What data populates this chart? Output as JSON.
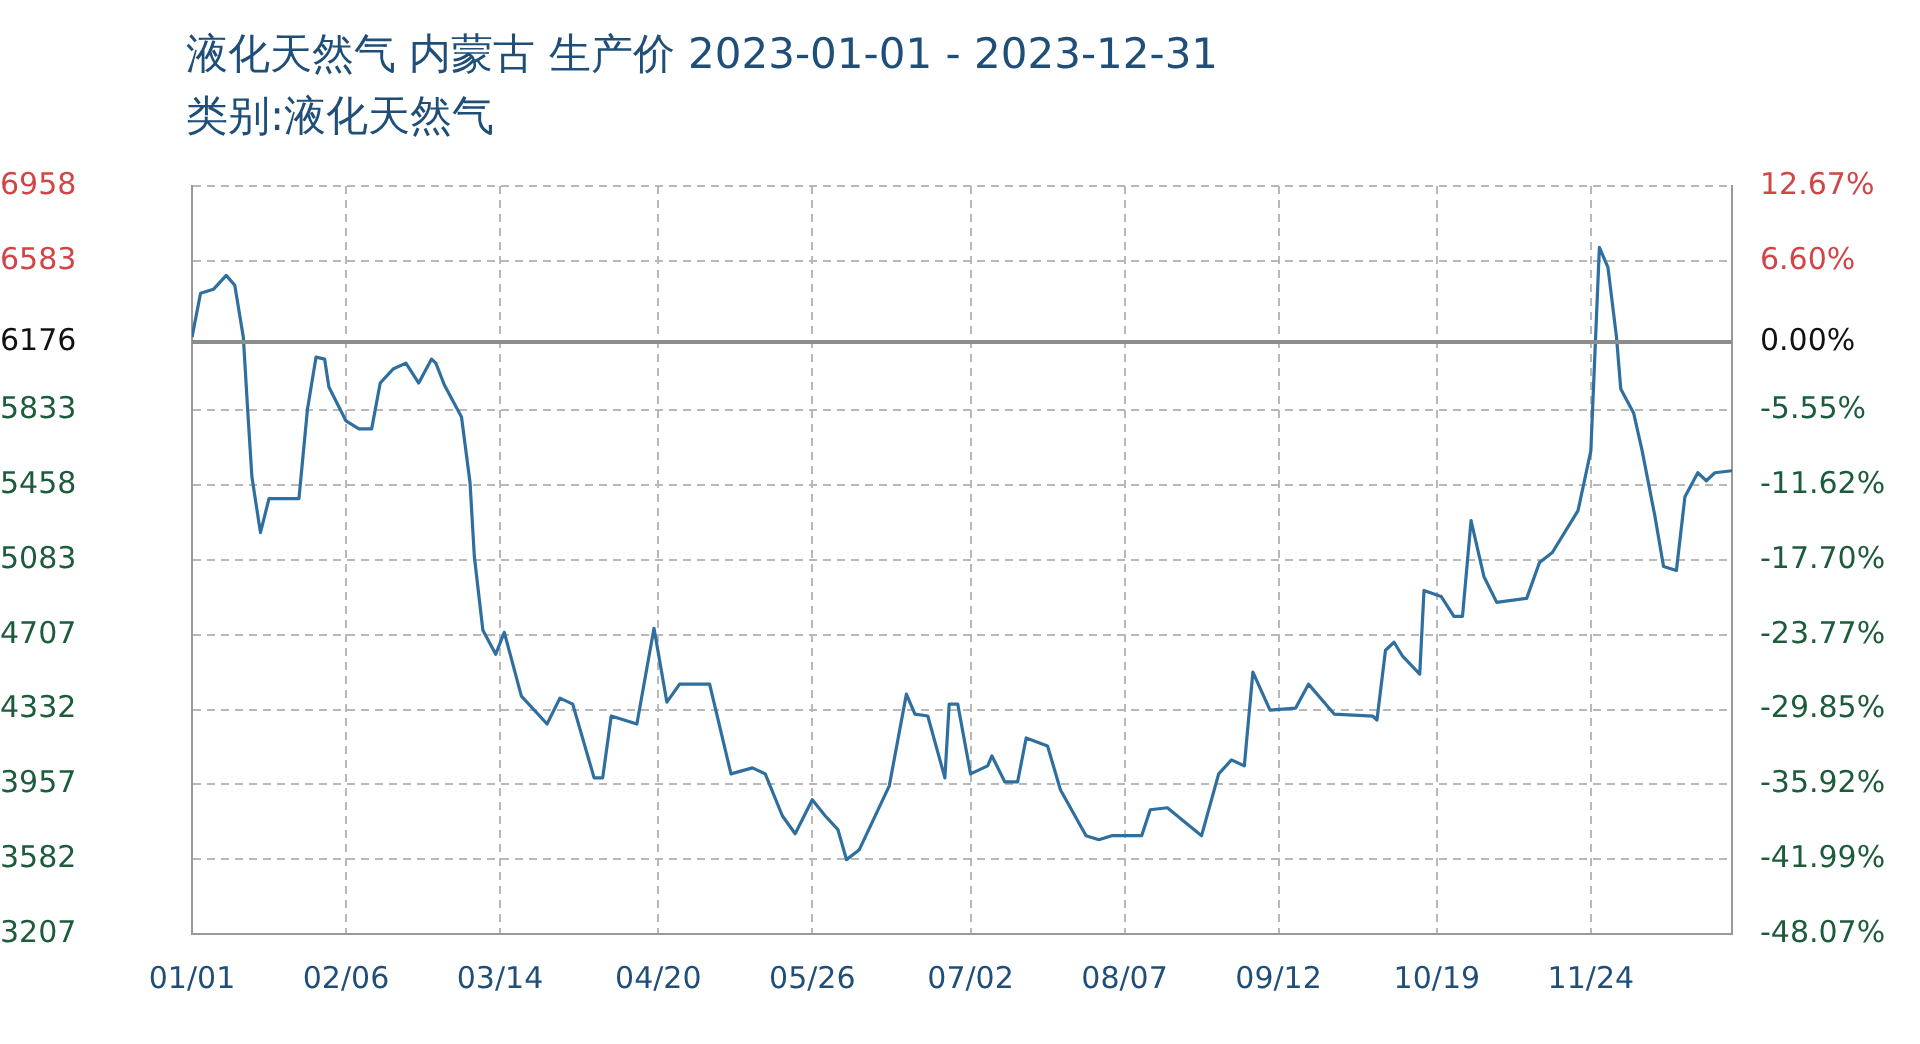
{
  "chart_data": {
    "type": "line",
    "title": "液化天然气 内蒙古 生产价 2023-01-01 - 2023-12-31",
    "subtitle": "类别:液化天然气",
    "x": [
      "2023-01-01",
      "2023-01-03",
      "2023-01-06",
      "2023-01-09",
      "2023-01-11",
      "2023-01-13",
      "2023-01-14",
      "2023-01-15",
      "2023-01-17",
      "2023-01-19",
      "2023-01-26",
      "2023-01-28",
      "2023-01-30",
      "2023-02-01",
      "2023-02-02",
      "2023-02-06",
      "2023-02-09",
      "2023-02-12",
      "2023-02-14",
      "2023-02-17",
      "2023-02-20",
      "2023-02-23",
      "2023-02-26",
      "2023-02-27",
      "2023-03-01",
      "2023-03-05",
      "2023-03-07",
      "2023-03-08",
      "2023-03-10",
      "2023-03-13",
      "2023-03-15",
      "2023-03-19",
      "2023-03-25",
      "2023-03-28",
      "2023-03-31",
      "2023-04-05",
      "2023-04-07",
      "2023-04-09",
      "2023-04-15",
      "2023-04-19",
      "2023-04-22",
      "2023-04-25",
      "2023-05-02",
      "2023-05-07",
      "2023-05-12",
      "2023-05-15",
      "2023-05-19",
      "2023-05-22",
      "2023-05-26",
      "2023-05-29",
      "2023-06-01",
      "2023-06-03",
      "2023-06-06",
      "2023-06-13",
      "2023-06-17",
      "2023-06-19",
      "2023-06-22",
      "2023-06-26",
      "2023-06-27",
      "2023-06-29",
      "2023-07-02",
      "2023-07-06",
      "2023-07-07",
      "2023-07-10",
      "2023-07-13",
      "2023-07-15",
      "2023-07-20",
      "2023-07-23",
      "2023-07-29",
      "2023-08-01",
      "2023-08-04",
      "2023-08-11",
      "2023-08-13",
      "2023-08-17",
      "2023-08-25",
      "2023-08-29",
      "2023-09-01",
      "2023-09-04",
      "2023-09-06",
      "2023-09-10",
      "2023-09-16",
      "2023-09-19",
      "2023-09-25",
      "2023-10-04",
      "2023-10-05",
      "2023-10-07",
      "2023-10-09",
      "2023-10-11",
      "2023-10-15",
      "2023-10-16",
      "2023-10-20",
      "2023-10-23",
      "2023-10-25",
      "2023-10-27",
      "2023-10-30",
      "2023-11-02",
      "2023-11-09",
      "2023-11-12",
      "2023-11-15",
      "2023-11-21",
      "2023-11-24",
      "2023-11-26",
      "2023-11-28",
      "2023-11-30",
      "2023-12-01",
      "2023-12-04",
      "2023-12-06",
      "2023-12-09",
      "2023-12-11",
      "2023-12-14",
      "2023-12-16",
      "2023-12-19",
      "2023-12-21",
      "2023-12-23",
      "2023-12-27"
    ],
    "series": [
      {
        "color": "#2f6f9f",
        "values": [
          6200,
          6420,
          6440,
          6510,
          6460,
          6200,
          5840,
          5500,
          5220,
          5390,
          5390,
          5840,
          6100,
          6090,
          5950,
          5780,
          5740,
          5740,
          5970,
          6040,
          6070,
          5970,
          6090,
          6070,
          5960,
          5800,
          5470,
          5100,
          4730,
          4610,
          4720,
          4400,
          4260,
          4390,
          4360,
          3990,
          3990,
          4300,
          4260,
          4740,
          4370,
          4460,
          4460,
          4010,
          4040,
          4010,
          3800,
          3710,
          3880,
          3800,
          3730,
          3580,
          3630,
          3950,
          4410,
          4310,
          4300,
          3990,
          4360,
          4360,
          4010,
          4050,
          4100,
          3970,
          3970,
          4190,
          4150,
          3930,
          3700,
          3680,
          3700,
          3700,
          3830,
          3840,
          3700,
          4010,
          4080,
          4050,
          4520,
          4330,
          4340,
          4460,
          4310,
          4300,
          4280,
          4630,
          4670,
          4600,
          4510,
          4930,
          4900,
          4800,
          4800,
          5280,
          5000,
          4870,
          4890,
          5070,
          5120,
          5330,
          5630,
          6650,
          6550,
          6200,
          5940,
          5820,
          5630,
          5300,
          5050,
          5030,
          5400,
          5520,
          5480,
          5520,
          5530
        ]
      }
    ],
    "xlim": [
      "2023-01-01",
      "2023-12-27"
    ],
    "xticks": [
      {
        "value": "2023-01-01",
        "label": "01/01"
      },
      {
        "value": "2023-02-06",
        "label": "02/06"
      },
      {
        "value": "2023-03-14",
        "label": "03/14"
      },
      {
        "value": "2023-04-20",
        "label": "04/20"
      },
      {
        "value": "2023-05-26",
        "label": "05/26"
      },
      {
        "value": "2023-07-02",
        "label": "07/02"
      },
      {
        "value": "2023-08-07",
        "label": "08/07"
      },
      {
        "value": "2023-09-12",
        "label": "09/12"
      },
      {
        "value": "2023-10-19",
        "label": "10/19"
      },
      {
        "value": "2023-11-24",
        "label": "11/24"
      }
    ],
    "ylim": [
      3207,
      6958
    ],
    "yticks": [
      3207,
      3582,
      3957,
      4332,
      4707,
      5083,
      5458,
      5833,
      6176,
      6583,
      6958
    ],
    "y2lim": [
      -48.07,
      12.67
    ],
    "y2ticks": [
      {
        "value": -48.07,
        "label": "-48.07%"
      },
      {
        "value": -41.99,
        "label": "-41.99%"
      },
      {
        "value": -35.92,
        "label": "-35.92%"
      },
      {
        "value": -29.85,
        "label": "-29.85%"
      },
      {
        "value": -23.77,
        "label": "-23.77%"
      },
      {
        "value": -17.7,
        "label": "-17.70%"
      },
      {
        "value": -11.62,
        "label": "-11.62%"
      },
      {
        "value": -5.55,
        "label": "-5.55%"
      },
      {
        "value": 0,
        "label": "0.00%"
      },
      {
        "value": 6.6,
        "label": "6.60%"
      },
      {
        "value": 12.67,
        "label": "12.67%"
      }
    ],
    "ref_lines": [
      {
        "axis": "y",
        "value": 6176,
        "color": "#8c8c8c"
      }
    ],
    "grid": true,
    "legend": false,
    "marker": "none",
    "line_style": "solid"
  }
}
